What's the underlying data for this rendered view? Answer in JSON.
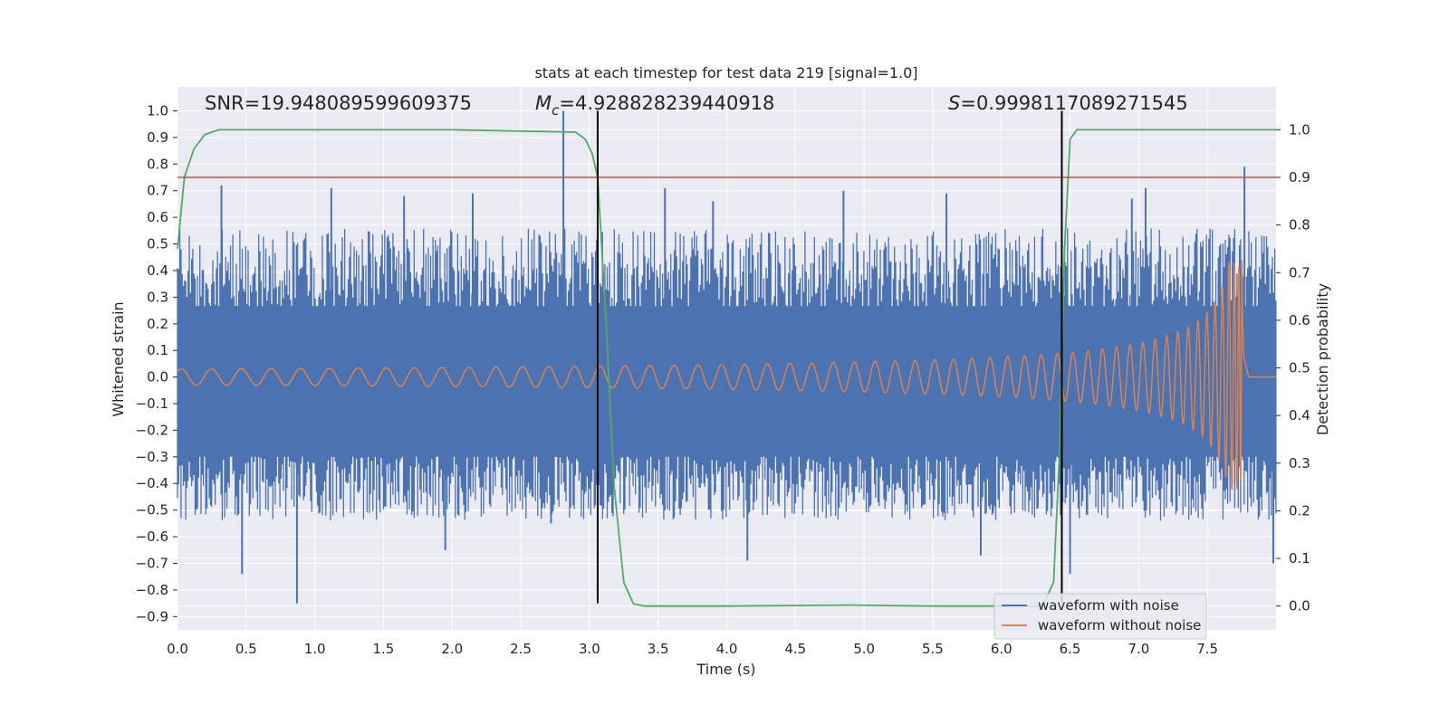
{
  "chart_data": {
    "type": "line",
    "title": "stats at each timestep for test data 219 [signal=1.0]",
    "xlabel": "Time (s)",
    "ylabel": "Whitened strain",
    "y2label": "Detection probability",
    "xlim": [
      0.0,
      8.0
    ],
    "ylim": [
      -0.95,
      1.09
    ],
    "y2lim": [
      -0.05,
      1.09
    ],
    "xticks": [
      "0.0",
      "0.5",
      "1.0",
      "1.5",
      "2.0",
      "2.5",
      "3.0",
      "3.5",
      "4.0",
      "4.5",
      "5.0",
      "5.5",
      "6.0",
      "6.5",
      "7.0",
      "7.5"
    ],
    "yticks": [
      "1.0",
      "0.9",
      "0.8",
      "0.7",
      "0.6",
      "0.5",
      "0.4",
      "0.3",
      "0.2",
      "0.1",
      "0.0",
      "−0.1",
      "−0.2",
      "−0.3",
      "−0.4",
      "−0.5",
      "−0.6",
      "−0.7",
      "−0.8",
      "−0.9"
    ],
    "y2ticks": [
      "1.0",
      "0.9",
      "0.8",
      "0.7",
      "0.6",
      "0.5",
      "0.4",
      "0.3",
      "0.2",
      "0.1",
      "0.0"
    ],
    "grid": true,
    "legend_position": "lower right",
    "annotations": {
      "snr_label": "SNR=19.948089599609375",
      "mc_symbol": "M",
      "mc_subscript": "c",
      "mc_value": "=4.928828239440918",
      "s_symbol": "S",
      "s_value": "=0.9998117089271545"
    },
    "threshold_line": {
      "axis": "right",
      "value": 0.9,
      "color": "#c44e52"
    },
    "vertical_markers": [
      {
        "x": 3.06,
        "y_from": -0.85,
        "y_to": 1.0
      },
      {
        "x": 6.44,
        "y_from": -0.85,
        "y_to": 1.0
      }
    ],
    "series": [
      {
        "name": "waveform with noise",
        "color": "#4c72b0",
        "axis": "left",
        "description_style": "noise band",
        "band_upper": 0.43,
        "band_lower": -0.3,
        "spikes": [
          [
            0.87,
            -0.85
          ],
          [
            0.32,
            0.72
          ],
          [
            0.47,
            -0.74
          ],
          [
            1.12,
            0.71
          ],
          [
            1.65,
            0.68
          ],
          [
            2.15,
            0.69
          ],
          [
            2.81,
            1.0
          ],
          [
            3.55,
            0.71
          ],
          [
            4.15,
            -0.69
          ],
          [
            4.85,
            0.7
          ],
          [
            5.6,
            0.69
          ],
          [
            6.5,
            -0.74
          ],
          [
            7.05,
            0.71
          ],
          [
            7.77,
            0.79
          ],
          [
            7.98,
            -0.7
          ],
          [
            5.85,
            -0.67
          ],
          [
            2.72,
            -0.55
          ],
          [
            1.95,
            -0.65
          ],
          [
            3.9,
            0.66
          ],
          [
            6.95,
            0.67
          ]
        ]
      },
      {
        "name": "waveform without noise",
        "color": "#dd8452",
        "axis": "left",
        "description_style": "chirp",
        "amplitude_start": 0.03,
        "peak": 0.44,
        "peak_x": 7.76,
        "end_x": 7.8
      },
      {
        "name": "detection probability",
        "color": "#55a868",
        "axis": "right",
        "x": [
          0.0,
          0.05,
          0.12,
          0.2,
          0.3,
          0.5,
          1.0,
          2.0,
          2.9,
          2.97,
          3.02,
          3.06,
          3.12,
          3.18,
          3.25,
          3.32,
          3.4,
          3.5,
          4.0,
          4.9,
          5.5,
          6.0,
          6.3,
          6.38,
          6.42,
          6.46,
          6.5,
          6.55,
          6.7,
          7.0,
          8.0
        ],
        "y": [
          0.75,
          0.9,
          0.96,
          0.99,
          1.0,
          1.0,
          1.0,
          1.0,
          0.995,
          0.98,
          0.95,
          0.9,
          0.6,
          0.25,
          0.05,
          0.005,
          0.0,
          0.0,
          0.0,
          0.002,
          0.0,
          0.0,
          0.0,
          0.05,
          0.3,
          0.75,
          0.98,
          1.0,
          1.0,
          1.0,
          1.0
        ]
      }
    ]
  }
}
